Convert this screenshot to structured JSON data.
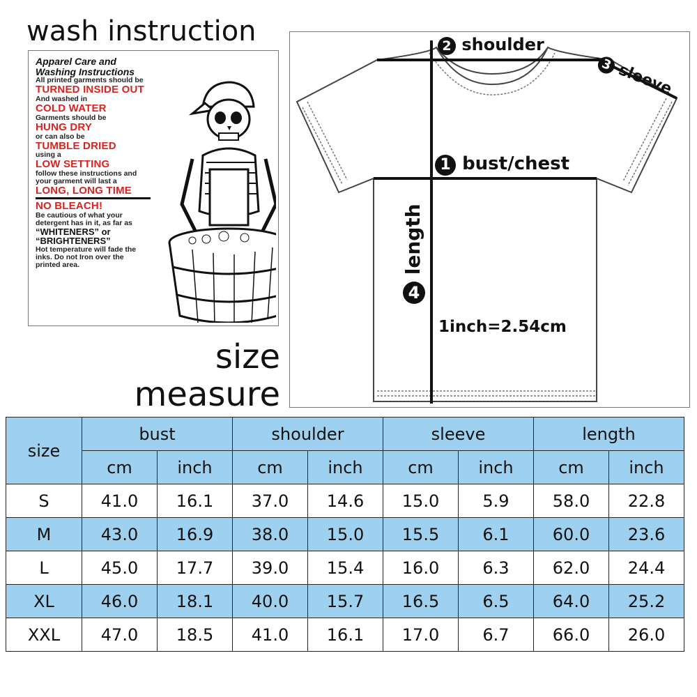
{
  "wash_title": "wash instruction",
  "care_card": {
    "lines": [
      {
        "style": "head",
        "text": "Apparel Care and"
      },
      {
        "style": "head",
        "text": "Washing Instructions"
      },
      {
        "style": "small",
        "text": "All printed garments should be"
      },
      {
        "style": "red",
        "text": "TURNED INSIDE OUT"
      },
      {
        "style": "small",
        "text": "And washed in"
      },
      {
        "style": "red",
        "text": "COLD WATER"
      },
      {
        "style": "small",
        "text": "Garments should be"
      },
      {
        "style": "red",
        "text": "HUNG DRY"
      },
      {
        "style": "small",
        "text": "or can also be"
      },
      {
        "style": "red",
        "text": "TUMBLE DRIED"
      },
      {
        "style": "small",
        "text": "using a"
      },
      {
        "style": "red",
        "text": "LOW SETTING"
      },
      {
        "style": "small",
        "text": "follow these instructions and"
      },
      {
        "style": "small",
        "text": "your garment will last a"
      },
      {
        "style": "red",
        "text": "LONG, LONG TIME"
      },
      {
        "style": "rule",
        "text": ""
      },
      {
        "style": "red",
        "text": "NO BLEACH!"
      },
      {
        "style": "small",
        "text": "Be cautious of what your"
      },
      {
        "style": "small",
        "text": "detergent has in it, as far as"
      },
      {
        "style": "quote",
        "text": "“WHITENERS” or"
      },
      {
        "style": "quote",
        "text": "“BRIGHTENERS”"
      },
      {
        "style": "small",
        "text": "Hot temperature will fade the"
      },
      {
        "style": "small",
        "text": "inks. Do not Iron over the"
      },
      {
        "style": "small",
        "text": "printed area."
      }
    ]
  },
  "size_title": [
    "size",
    "measure"
  ],
  "shirt": {
    "shoulder": {
      "num": "2",
      "label": "shoulder"
    },
    "sleeve": {
      "num": "3",
      "label": "sleeve"
    },
    "bust": {
      "num": "1",
      "label": "bust/chest"
    },
    "length": {
      "num": "4",
      "label": "length"
    },
    "conversion": "1inch=2.54cm"
  },
  "colors": {
    "header_blue": "#9dd1ef",
    "red_text": "#d8231f"
  },
  "table": {
    "size_header": "size",
    "groups": [
      "bust",
      "shoulder",
      "sleeve",
      "length"
    ],
    "units": [
      "cm",
      "inch"
    ],
    "rows": [
      [
        "S",
        "41.0",
        "16.1",
        "37.0",
        "14.6",
        "15.0",
        "5.9",
        "58.0",
        "22.8"
      ],
      [
        "M",
        "43.0",
        "16.9",
        "38.0",
        "15.0",
        "15.5",
        "6.1",
        "60.0",
        "23.6"
      ],
      [
        "L",
        "45.0",
        "17.7",
        "39.0",
        "15.4",
        "16.0",
        "6.3",
        "62.0",
        "24.4"
      ],
      [
        "XL",
        "46.0",
        "18.1",
        "40.0",
        "15.7",
        "16.5",
        "6.5",
        "64.0",
        "25.2"
      ],
      [
        "XXL",
        "47.0",
        "18.5",
        "41.0",
        "16.1",
        "17.0",
        "6.7",
        "66.0",
        "26.0"
      ]
    ]
  }
}
